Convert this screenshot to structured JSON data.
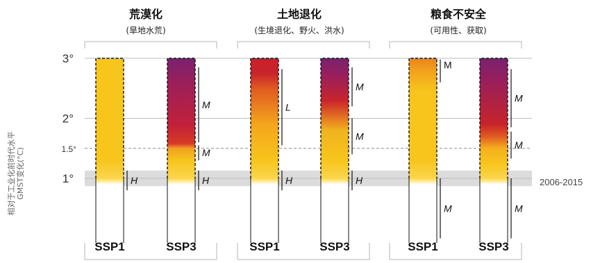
{
  "chart_data": {
    "type": "bar",
    "ylabel_lines": [
      "相对于工业化前时代水平",
      "GMST变化(°C)"
    ],
    "y_ticks": [
      {
        "value": 1,
        "label": "1°"
      },
      {
        "value": 1.5,
        "label": "1.5°"
      },
      {
        "value": 2,
        "label": "2°"
      },
      {
        "value": 3,
        "label": "3°"
      }
    ],
    "ylim": [
      0.0,
      3.0
    ],
    "reference_band": {
      "label": "2006-2015",
      "y0": 0.87,
      "y1": 1.13
    },
    "panels": [
      {
        "title": "荒漠化",
        "subtitle": "(旱地水荒)",
        "bars": [
          {
            "scenario": "SSP1",
            "stops": [
              {
                "y": 1.0,
                "color": "#fad54f"
              },
              {
                "y": 1.3,
                "color": "#f7c51c"
              },
              {
                "y": 3.0,
                "color": "#f7c51c"
              }
            ],
            "levels": [
              {
                "label": "H",
                "y0": 0.8,
                "y1": 1.13,
                "style": "italic"
              }
            ]
          },
          {
            "scenario": "SSP3",
            "stops": [
              {
                "y": 1.0,
                "color": "#fad54f"
              },
              {
                "y": 1.3,
                "color": "#f7c51c"
              },
              {
                "y": 1.5,
                "color": "#f0a020"
              },
              {
                "y": 1.58,
                "color": "#d63a24"
              },
              {
                "y": 1.9,
                "color": "#c2203a"
              },
              {
                "y": 2.6,
                "color": "#9a1f5a"
              },
              {
                "y": 3.0,
                "color": "#7a2070"
              }
            ],
            "levels": [
              {
                "label": "H",
                "y0": 0.8,
                "y1": 1.13,
                "style": "italic"
              },
              {
                "label": "M",
                "y0": 1.3,
                "y1": 1.55,
                "style": "italic"
              },
              {
                "label": "M",
                "y0": 1.6,
                "y1": 2.85,
                "style": "italic"
              }
            ]
          }
        ]
      },
      {
        "title": "土地退化",
        "subtitle": "(生境退化、野火、洪水)",
        "bars": [
          {
            "scenario": "SSP1",
            "stops": [
              {
                "y": 1.0,
                "color": "#fad54f"
              },
              {
                "y": 1.3,
                "color": "#f7c51c"
              },
              {
                "y": 1.9,
                "color": "#f4a51c"
              },
              {
                "y": 2.5,
                "color": "#e05a20"
              },
              {
                "y": 2.75,
                "color": "#c8242a"
              },
              {
                "y": 3.0,
                "color": "#c8202c"
              }
            ],
            "levels": [
              {
                "label": "H",
                "y0": 0.8,
                "y1": 1.13,
                "style": "italic"
              },
              {
                "label": "L",
                "y0": 1.55,
                "y1": 2.82,
                "style": "italic"
              }
            ]
          },
          {
            "scenario": "SSP3",
            "stops": [
              {
                "y": 1.0,
                "color": "#fad54f"
              },
              {
                "y": 1.3,
                "color": "#f7c51c"
              },
              {
                "y": 1.8,
                "color": "#f0b31e"
              },
              {
                "y": 2.05,
                "color": "#e06a22"
              },
              {
                "y": 2.3,
                "color": "#c8242a"
              },
              {
                "y": 2.7,
                "color": "#9a1f5a"
              },
              {
                "y": 3.0,
                "color": "#7a2070"
              }
            ],
            "levels": [
              {
                "label": "H",
                "y0": 0.8,
                "y1": 1.13,
                "style": "italic"
              },
              {
                "label": "M",
                "y0": 1.4,
                "y1": 2.0,
                "style": "italic"
              },
              {
                "label": "M",
                "y0": 2.2,
                "y1": 2.85,
                "style": "italic"
              }
            ]
          }
        ]
      },
      {
        "title": "粮食不安全",
        "subtitle": "(可用性、获取)",
        "bars": [
          {
            "scenario": "SSP1",
            "stops": [
              {
                "y": 1.0,
                "color": "#fad54f"
              },
              {
                "y": 1.3,
                "color": "#f7c51c"
              },
              {
                "y": 2.45,
                "color": "#f7c51c"
              },
              {
                "y": 2.8,
                "color": "#f2a01c"
              },
              {
                "y": 3.0,
                "color": "#e8841a"
              }
            ],
            "levels": [
              {
                "label": "M",
                "y0": 0.0,
                "y1": 1.0,
                "style": "italic"
              },
              {
                "label": "M",
                "y0": 2.6,
                "y1": 2.98,
                "style": "upright"
              }
            ]
          },
          {
            "scenario": "SSP3",
            "stops": [
              {
                "y": 1.0,
                "color": "#fad54f"
              },
              {
                "y": 1.25,
                "color": "#f7c51c"
              },
              {
                "y": 1.5,
                "color": "#f4b01c"
              },
              {
                "y": 1.7,
                "color": "#e05a20"
              },
              {
                "y": 1.9,
                "color": "#c8242a"
              },
              {
                "y": 2.6,
                "color": "#9a1f5a"
              },
              {
                "y": 3.0,
                "color": "#7a2070"
              }
            ],
            "levels": [
              {
                "label": "M",
                "y0": 0.0,
                "y1": 1.0,
                "style": "italic"
              },
              {
                "label": "M",
                "y0": 1.33,
                "y1": 1.78,
                "style": "italic"
              },
              {
                "label": "M",
                "y0": 1.85,
                "y1": 2.82,
                "style": "italic"
              }
            ]
          }
        ]
      }
    ]
  },
  "colors": {
    "band": "#dcdcdc",
    "grid": "#bdbdbd",
    "bracket": "#b5b5b5"
  }
}
